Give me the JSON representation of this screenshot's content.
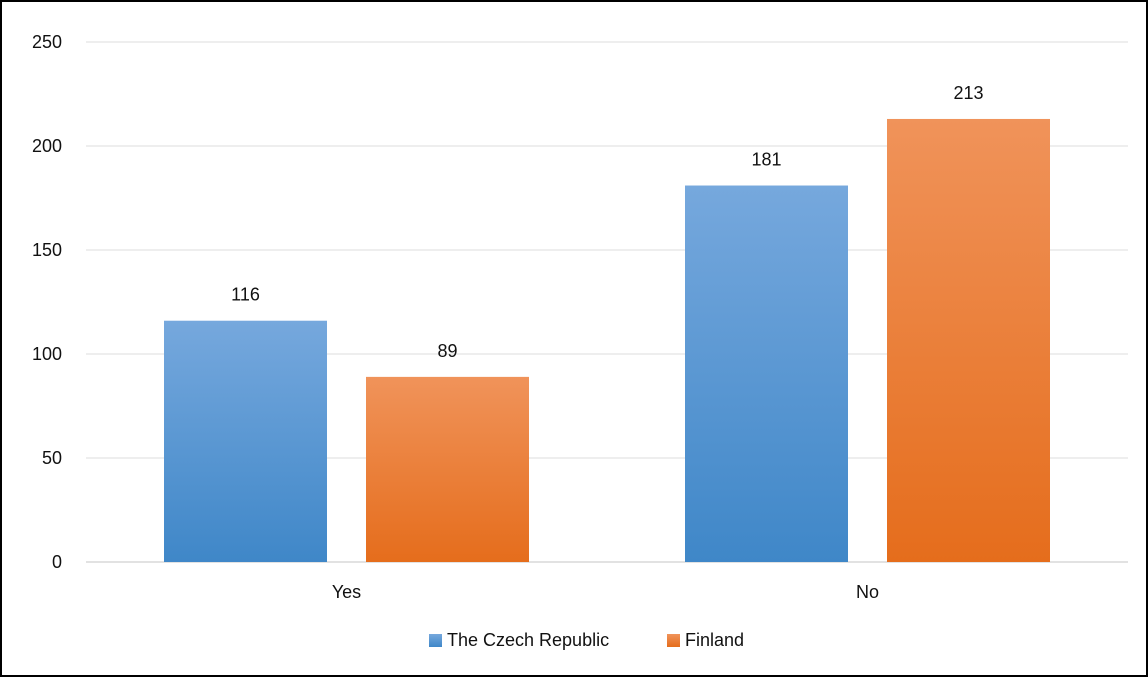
{
  "chart_data": {
    "type": "bar",
    "title": "",
    "xlabel": "",
    "ylabel": "",
    "categories": [
      "Yes",
      "No"
    ],
    "series": [
      {
        "name": "The Czech Republic",
        "values": [
          116,
          181
        ],
        "color": "#5b9bd5"
      },
      {
        "name": "Finland",
        "values": [
          89,
          213
        ],
        "color": "#f28a3a"
      }
    ],
    "ylim": [
      0,
      250
    ],
    "yticks": [
      0,
      50,
      100,
      150,
      200,
      250
    ],
    "grid": true,
    "legend": "bottom-center",
    "data_labels": true
  }
}
